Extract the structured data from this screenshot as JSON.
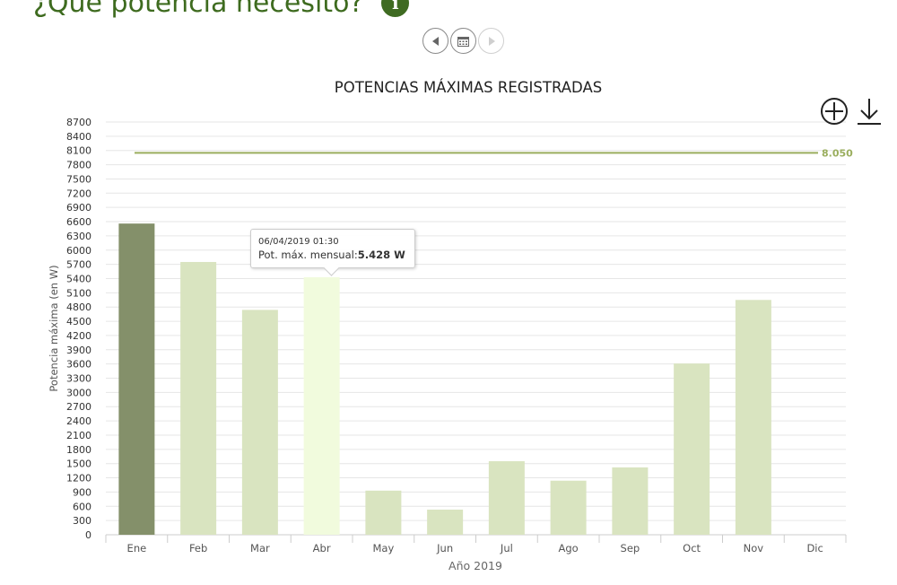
{
  "page": {
    "title": "¿Qué potencia necesito?",
    "info_badge": "i"
  },
  "nav": {
    "prev_icon": "left-arrow-icon",
    "calendar_icon": "calendar-icon",
    "next_icon": "right-arrow-icon"
  },
  "toolbar": {
    "zoom_icon": "zoom-plus-icon",
    "download_icon": "download-icon"
  },
  "colors": {
    "title": "#3e6b1f",
    "bar": "#d9e4c0",
    "bar_highlight": "#84906a",
    "bar_hover": "#f1fbdd",
    "contracted_line": "#9aae5e"
  },
  "chart_data": {
    "type": "bar",
    "title": "POTENCIAS MÁXIMAS REGISTRADAS",
    "xlabel": "Año 2019",
    "ylabel": "Potencia máxima (en W)",
    "categories": [
      "Ene",
      "Feb",
      "Mar",
      "Abr",
      "May",
      "Jun",
      "Jul",
      "Ago",
      "Sep",
      "Oct",
      "Nov",
      "Dic"
    ],
    "values": [
      6560,
      5750,
      4740,
      5428,
      930,
      530,
      1550,
      1140,
      1420,
      3610,
      4950,
      null
    ],
    "highlighted_category": "Ene",
    "hovered_category": "Abr",
    "ylim": [
      0,
      8700
    ],
    "yticks": [
      0,
      300,
      600,
      900,
      1200,
      1500,
      1800,
      2100,
      2400,
      2700,
      3000,
      3300,
      3600,
      3900,
      4200,
      4500,
      4800,
      5100,
      5400,
      5700,
      6000,
      6300,
      6600,
      6900,
      7200,
      7500,
      7800,
      8100,
      8400,
      8700
    ],
    "grid": true,
    "reference_line": {
      "value": 8050,
      "label": "8.050"
    },
    "tooltip": {
      "date": "06/04/2019 01:30",
      "label": "Pot. máx. mensual:",
      "value": "5.428 W"
    }
  }
}
